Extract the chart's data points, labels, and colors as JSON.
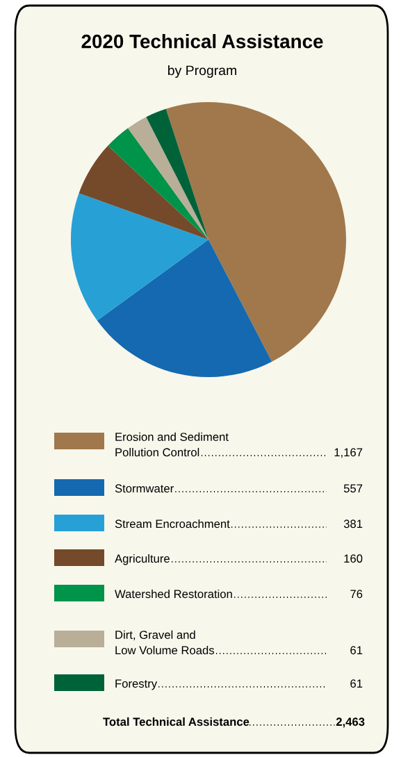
{
  "chart_data": {
    "type": "pie",
    "title": "2020 Technical Assistance",
    "subtitle": "by Program",
    "categories": [
      "Erosion and Sediment\nPollution Control",
      "Stormwater",
      "Stream Encroachment",
      "Agriculture",
      "Watershed Restoration",
      "Dirt, Gravel and\nLow Volume Roads",
      "Forestry"
    ],
    "values": [
      1167,
      557,
      381,
      160,
      76,
      61,
      61
    ],
    "value_labels": [
      "1,167",
      "557",
      "381",
      "160",
      "76",
      "61",
      "61"
    ],
    "colors": [
      "#a0784c",
      "#1469b0",
      "#27a0d6",
      "#744a2a",
      "#00934a",
      "#b9ae98",
      "#006239"
    ],
    "legend": "bottom",
    "annotations": [
      "Total Technical Assistance",
      "2,463"
    ]
  }
}
